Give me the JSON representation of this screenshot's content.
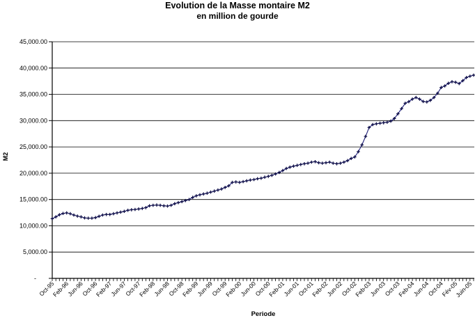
{
  "title": {
    "line1": "Evolution de la Masse montaire M2",
    "line2": "en million de gourde"
  },
  "chart_data": {
    "type": "line",
    "title": "Evolution de la Masse montaire M2 — en million de gourde",
    "xlabel": "Periode",
    "ylabel": "M2",
    "ylim": [
      0,
      45000
    ],
    "ytick_step": 5000,
    "ytick_labels": [
      "-",
      "5,000.00",
      "10,000.00",
      "15,000.00",
      "20,000.00",
      "25,000.00",
      "30,000.00",
      "35,000.00",
      "40,000.00",
      "45,000.00"
    ],
    "grid": "horizontal",
    "legend": "none",
    "line_color": "#20207a",
    "marker_color": "#0d0d45",
    "marker_shape": "plus",
    "points_start": "Oct-1995",
    "points_freq_months": 1,
    "label_every_n_points": 4,
    "x_labels": [
      "Oct-95",
      "Feb-96",
      "Jun-96",
      "Oct-96",
      "Feb-97",
      "Jun-97",
      "Oct-97",
      "Feb-98",
      "Jun-98",
      "Oct-98",
      "Feb-99",
      "Jun-99",
      "Oct-99",
      "Feb-00",
      "Jun-00",
      "Oct-00",
      "Feb-01",
      "Jun-01",
      "Oct-01",
      "Feb-02",
      "Jun-02",
      "Oct-02",
      "Feb-03",
      "Jun-03",
      "Oct-03",
      "Feb-04",
      "Jun-04",
      "Oct-04",
      "Fév-05",
      "Juin-05"
    ],
    "series": [
      {
        "name": "M2",
        "values": [
          11350,
          11700,
          12100,
          12350,
          12450,
          12300,
          12050,
          11850,
          11700,
          11500,
          11450,
          11450,
          11550,
          11800,
          12050,
          12150,
          12150,
          12300,
          12450,
          12600,
          12750,
          12950,
          13050,
          13100,
          13200,
          13300,
          13450,
          13800,
          13900,
          13950,
          13900,
          13800,
          13750,
          13900,
          14200,
          14400,
          14600,
          14800,
          15000,
          15400,
          15700,
          15900,
          16050,
          16200,
          16400,
          16600,
          16800,
          17000,
          17300,
          17600,
          18250,
          18350,
          18250,
          18400,
          18550,
          18700,
          18800,
          18950,
          19050,
          19250,
          19400,
          19600,
          19850,
          20150,
          20500,
          20900,
          21150,
          21350,
          21500,
          21650,
          21800,
          21900,
          22100,
          22200,
          22000,
          21900,
          22000,
          22100,
          21900,
          21800,
          21900,
          22100,
          22400,
          22800,
          23100,
          24100,
          25400,
          27000,
          28700,
          29250,
          29400,
          29500,
          29600,
          29700,
          29900,
          30400,
          31300,
          32300,
          33300,
          33600,
          34100,
          34400,
          34100,
          33650,
          33550,
          33850,
          34400,
          35200,
          36300,
          36600,
          37100,
          37400,
          37300,
          37050,
          37600,
          38200,
          38450,
          38650
        ]
      }
    ]
  }
}
